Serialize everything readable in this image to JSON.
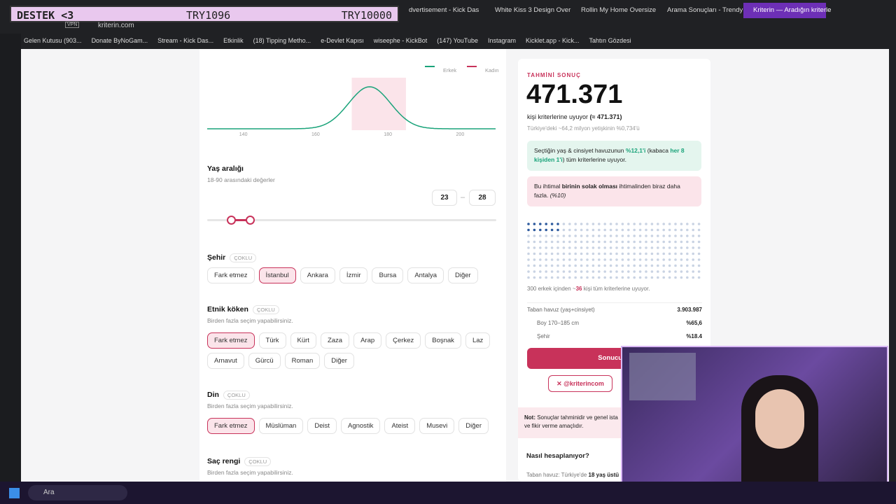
{
  "overlay": {
    "label": "DESTEK <3",
    "left": "TRY1096",
    "right": "TRY10000"
  },
  "tabs": [
    "dvertisement - Kick Das",
    "White Kiss 3 Design Over",
    "Rollin My Home Oversize",
    "Arama Sonuçları - Trendy",
    "Kriterin — Aradığın kriterle"
  ],
  "address": {
    "vpn": "VPN",
    "url": "kriterin.com"
  },
  "bookmarks": [
    "Gelen Kutusu (903...",
    "Donate ByNoGam...",
    "Stream - Kick Das...",
    "Etkinlik",
    "(18) Tipping Metho...",
    "e-Devlet Kapısı",
    "wiseephe - KickBot",
    "(147) YouTube",
    "Instagram",
    "Kicklet.app - Kick...",
    "Tahtın Gözdesi"
  ],
  "height_chart": {
    "legend": [
      {
        "name": "Erkek",
        "color": "#1aa37a"
      },
      {
        "name": "Kadın",
        "color": "#c8325a"
      }
    ],
    "xlim": [
      130,
      210
    ],
    "xticks": [
      140,
      160,
      180,
      200
    ],
    "highlight": [
      170,
      185
    ]
  },
  "age": {
    "title": "Yaş aralığı",
    "subtitle": "18-90 arasındaki değerler",
    "min": "23",
    "max": "28"
  },
  "sections": [
    {
      "title": "Şehir",
      "badge": "ÇOKLU",
      "options": [
        "Fark etmez",
        "İstanbul",
        "Ankara",
        "İzmir",
        "Bursa",
        "Antalya",
        "Diğer"
      ],
      "selected": 1
    },
    {
      "title": "Etnik köken",
      "badge": "ÇOKLU",
      "subtitle": "Birden fazla seçim yapabilirsiniz.",
      "options": [
        "Fark etmez",
        "Türk",
        "Kürt",
        "Zaza",
        "Arap",
        "Çerkez",
        "Boşnak",
        "Laz",
        "Arnavut",
        "Gürcü",
        "Roman",
        "Diğer"
      ],
      "selected": 0
    },
    {
      "title": "Din",
      "badge": "ÇOKLU",
      "subtitle": "Birden fazla seçim yapabilirsiniz.",
      "options": [
        "Fark etmez",
        "Müslüman",
        "Deist",
        "Agnostik",
        "Ateist",
        "Musevi",
        "Diğer"
      ],
      "selected": 0
    },
    {
      "title": "Saç rengi",
      "badge": "ÇOKLU",
      "subtitle": "Birden fazla seçim yapabilirsiniz.",
      "options": [],
      "selected": 0
    }
  ],
  "result": {
    "label": "TAHMİNİ SONUÇ",
    "number": "471.371",
    "line": [
      "kişi kriterlerine uyuyor ",
      "(≈ 471.371)"
    ],
    "sub": "Türkiye'deki ~64,2 milyon yetişkinin %0,734'ü",
    "green": [
      "Seçtiğin yaş & cinsiyet havuzunun ",
      "%12,1'i",
      " (kabaca ",
      "her 8 kişiden 1'i",
      ") tüm kriterlerine uyuyor."
    ],
    "pink": [
      "Bu ihtimal ",
      "birinin solak olması",
      " ihtimalinden biraz daha fazla. ",
      "(%10)"
    ],
    "caption": [
      "300 erkek içinden ~",
      "36",
      " kişi tüm kriterlerine uyuyor."
    ],
    "rows": [
      [
        "Taban havuz (yaş+cinsiyet)",
        "3.903.987"
      ],
      [
        "Boy 170–185 cm",
        "%65,6"
      ],
      [
        "Şehir",
        "%18.4"
      ]
    ],
    "button": "Sonucunu",
    "share": "@kriterincom"
  },
  "note": {
    "bold": "Not:",
    "text": " Sonuçlar tahminidir ve genel ista",
    "text2": "ve fikir verme amaçlıdır."
  },
  "how": {
    "title": "Nasıl hesaplanıyor?",
    "text": "Taban havuz: Türkiye'de ",
    "bold": "18 yaş üstü"
  },
  "taskbar": {
    "search": "Ara"
  }
}
